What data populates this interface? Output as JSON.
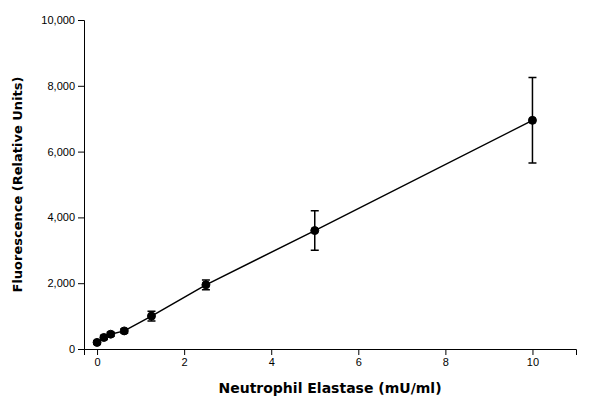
{
  "chart_data": {
    "type": "line",
    "x": [
      0.0,
      0.156,
      0.313,
      0.625,
      1.25,
      2.5,
      5.0,
      10.0
    ],
    "values": [
      200,
      350,
      450,
      550,
      1000,
      1950,
      3600,
      6950
    ],
    "yerr": [
      50,
      60,
      60,
      60,
      150,
      150,
      600,
      1300
    ],
    "xlabel": "Neutrophil Elastase (mU/ml)",
    "ylabel": "Fluorescence (Relative Units)",
    "xlim": [
      -0.3,
      11.0
    ],
    "ylim": [
      0,
      10000
    ],
    "xticks": [
      0,
      2,
      4,
      6,
      8,
      10
    ],
    "yticks": [
      0,
      {
        "value": 2000,
        "label": "2,000"
      },
      {
        "value": 4000,
        "label": "4,000"
      },
      {
        "value": 6000,
        "label": "6,000"
      },
      {
        "value": 8000,
        "label": "8,000"
      },
      {
        "value": 10000,
        "label": "10,000"
      }
    ],
    "color": "#000000",
    "marker": "circle",
    "grid": false
  }
}
